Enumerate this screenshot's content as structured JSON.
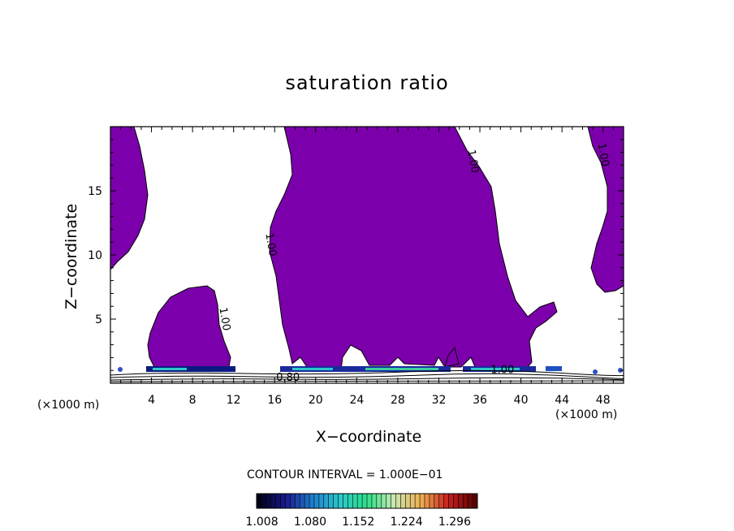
{
  "chart_data": {
    "type": "contour",
    "title": "saturation ratio",
    "xlabel": "X−coordinate",
    "ylabel": "Z−coordinate",
    "x_unit_label": "(×1000 m)",
    "xlim": [
      0,
      50
    ],
    "ylim": [
      0,
      20
    ],
    "x_ticks": [
      4,
      8,
      12,
      16,
      20,
      24,
      28,
      32,
      36,
      40,
      44,
      48
    ],
    "y_ticks": [
      5,
      10,
      15
    ],
    "fill_color": "#7b00ab",
    "contour_labels": [
      {
        "text": "1.00",
        "x": 15.6,
        "z": 10.8
      },
      {
        "text": "1.00",
        "x": 11.1,
        "z": 5.0
      },
      {
        "text": "1.00",
        "x": 35.3,
        "z": 17.3
      },
      {
        "text": "1.00",
        "x": 48.0,
        "z": 17.8
      },
      {
        "text": "1.00",
        "x": 38.2,
        "z": 1.0
      },
      {
        "text": "0.80",
        "x": 17.3,
        "z": 0.4
      }
    ],
    "contour_interval_label": "CONTOUR INTERVAL = 1.000E−01",
    "colorbar": {
      "ticks": [
        "1.008",
        "1.080",
        "1.152",
        "1.224",
        "1.296"
      ],
      "range": [
        1.0,
        1.33
      ],
      "colors": [
        "#000018",
        "#1a1a8c",
        "#1e7fd0",
        "#2cc8c8",
        "#2ee08a",
        "#c8e8b0",
        "#f0b050",
        "#c82020",
        "#5a0000"
      ]
    }
  }
}
